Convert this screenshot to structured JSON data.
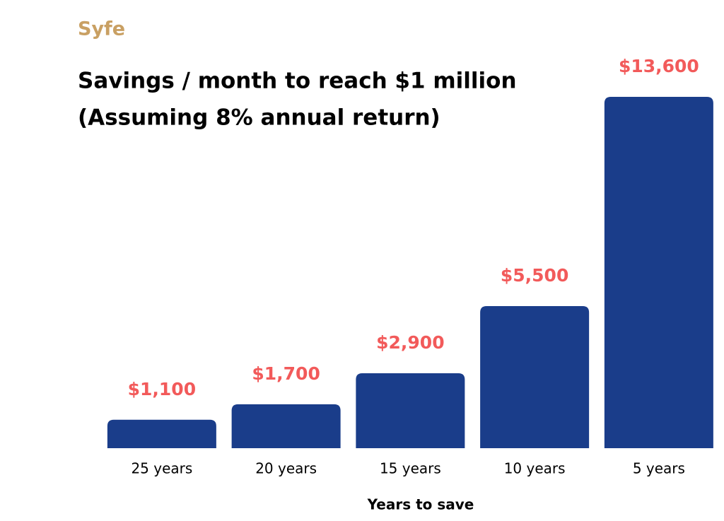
{
  "chart_data": {
    "type": "bar",
    "brand": "Syfe",
    "title": "Savings / month to reach $1 million",
    "subtitle": "(Assuming 8% annual return)",
    "x_label": "Years to save",
    "categories": [
      "25 years",
      "20 years",
      "15 years",
      "10 years",
      "5 years"
    ],
    "values": [
      1100,
      1700,
      2900,
      5500,
      13600
    ],
    "value_labels": [
      "$1,100",
      "$1,700",
      "$2,900",
      "$5,500",
      "$13,600"
    ],
    "color": "#1a3d8a",
    "label_color": "#f25a5a"
  }
}
